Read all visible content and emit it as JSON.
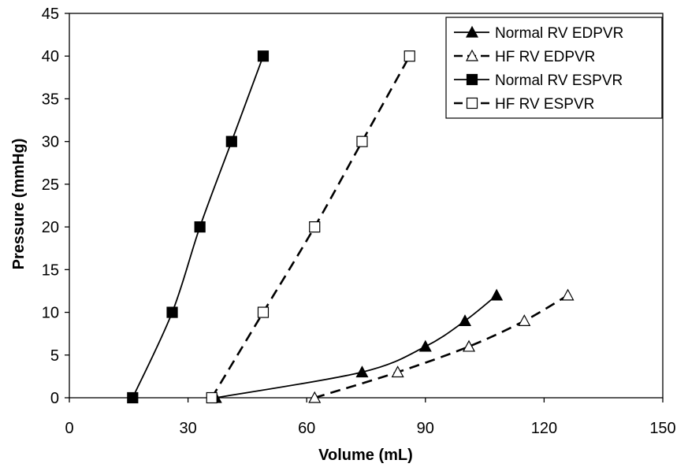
{
  "chart_data": {
    "type": "line",
    "title": "",
    "xlabel": "Volume (mL)",
    "ylabel": "Pressure (mmHg)",
    "xlim": [
      0,
      150
    ],
    "ylim": [
      0,
      45
    ],
    "xticks": [
      0,
      30,
      60,
      90,
      120,
      150
    ],
    "yticks": [
      0,
      5,
      10,
      15,
      20,
      25,
      30,
      35,
      40,
      45
    ],
    "grid": false,
    "legend_position": "top-right",
    "series": [
      {
        "name": "Normal RV EDPVR",
        "line": "solid",
        "marker": "triangle",
        "marker_fill": "#000000",
        "x": [
          37,
          74,
          90,
          100,
          108
        ],
        "y": [
          0,
          3,
          6,
          9,
          12
        ]
      },
      {
        "name": "HF RV EDPVR",
        "line": "dashed",
        "marker": "triangle",
        "marker_fill": "#ffffff",
        "x": [
          62,
          83,
          101,
          115,
          126
        ],
        "y": [
          0,
          3,
          6,
          9,
          12
        ]
      },
      {
        "name": "Normal RV ESPVR",
        "line": "solid",
        "marker": "square",
        "marker_fill": "#000000",
        "x": [
          16,
          26,
          33,
          41,
          49
        ],
        "y": [
          0,
          10,
          20,
          30,
          40
        ]
      },
      {
        "name": "HF RV ESPVR",
        "line": "dashed",
        "marker": "square",
        "marker_fill": "#ffffff",
        "x": [
          36,
          49,
          62,
          74,
          86
        ],
        "y": [
          0,
          10,
          20,
          30,
          40
        ]
      }
    ]
  }
}
